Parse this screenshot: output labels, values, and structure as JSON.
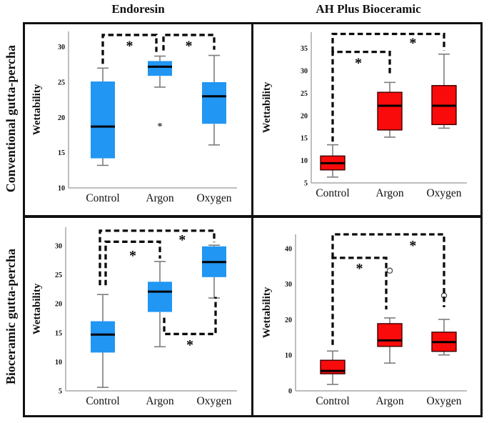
{
  "figure": {
    "col_headers": [
      "Endoresin",
      "AH Plus Bioceramic"
    ],
    "row_headers": [
      "Conventional gutta-percha",
      "Bioceramic gutta-percha"
    ]
  },
  "colors": {
    "blue_box": "#2196F3",
    "red_box": "#FA0B0B",
    "red_box_border": "#3d0000",
    "median": "#000000",
    "whisker": "#7d7d7d",
    "axis": "#a8a8a8",
    "bracket": "#0a0a0a",
    "text": "#111111"
  },
  "chart_data": [
    {
      "type": "box",
      "row": "Conventional gutta-percha",
      "col": "Endoresin",
      "ylabel": "Wettability",
      "categories": [
        "Control",
        "Argon",
        "Oxygen"
      ],
      "ymin": 10,
      "ymax": 32.2,
      "yticks": [
        10,
        15,
        20,
        25,
        30
      ],
      "box_color": "#2196F3",
      "box_stroke": "none",
      "boxes": [
        {
          "lo": 13.2,
          "q1": 14.2,
          "median": 18.7,
          "q3": 25.1,
          "hi": 27.0,
          "outliers": []
        },
        {
          "lo": 24.3,
          "q1": 25.9,
          "median": 27.2,
          "q3": 28.0,
          "hi": 28.7,
          "outliers": [
            {
              "v": 18.8,
              "symbol": "star"
            }
          ]
        },
        {
          "lo": 16.1,
          "q1": 19.1,
          "median": 23.0,
          "q3": 25.0,
          "hi": 28.8,
          "outliers": []
        }
      ],
      "brackets": [
        {
          "from": 0,
          "to": 1,
          "dx1": 0,
          "dx2": -5,
          "line": 31.7,
          "end1": 27.6,
          "end2": 29.3,
          "star_t": 0.5,
          "star_y": 30.2
        },
        {
          "from": 1,
          "to": 2,
          "dx1": 5,
          "dx2": 0,
          "line": 31.7,
          "end1": 29.5,
          "end2": 29.6,
          "star_t": 0.5,
          "star_y": 30.2
        }
      ]
    },
    {
      "type": "box",
      "row": "Conventional gutta-percha",
      "col": "AH Plus Bioceramic",
      "ylabel": "Wettability",
      "categories": [
        "Control",
        "Argon",
        "Oxygen"
      ],
      "ymin": 5,
      "ymax": 38.6,
      "yticks": [
        5,
        10,
        15,
        20,
        25,
        30,
        35
      ],
      "box_color": "#FA0B0B",
      "box_stroke": "#3d0000",
      "boxes": [
        {
          "lo": 6.3,
          "q1": 7.9,
          "median": 9.4,
          "q3": 11.0,
          "hi": 13.5,
          "outliers": []
        },
        {
          "lo": 15.2,
          "q1": 16.8,
          "median": 22.2,
          "q3": 25.2,
          "hi": 27.4,
          "outliers": []
        },
        {
          "lo": 17.2,
          "q1": 18.0,
          "median": 22.2,
          "q3": 26.7,
          "hi": 33.7,
          "outliers": []
        }
      ],
      "brackets": [
        {
          "from": 0,
          "to": 1,
          "dx1": 0,
          "dx2": 0,
          "line": 34.2,
          "end1": 14.2,
          "end2": 29.2,
          "star_t": 0.45,
          "star_y": 31.8
        },
        {
          "from": 0,
          "to": 2,
          "dx1": 0,
          "dx2": 0,
          "line": 38.2,
          "end1": 34.2,
          "end2": 34.5,
          "star_t": 0.72,
          "star_y": 36.3
        }
      ]
    },
    {
      "type": "box",
      "row": "Bioceramic gutta-percha",
      "col": "Endoresin",
      "ylabel": "Wettability",
      "categories": [
        "Control",
        "Argon",
        "Oxygen"
      ],
      "ymin": 5,
      "ymax": 33.2,
      "yticks": [
        5,
        10,
        15,
        20,
        25,
        30
      ],
      "box_color": "#2196F3",
      "box_stroke": "none",
      "boxes": [
        {
          "lo": 5.6,
          "q1": 11.6,
          "median": 14.7,
          "q3": 17.0,
          "hi": 21.6,
          "outliers": []
        },
        {
          "lo": 12.6,
          "q1": 18.6,
          "median": 22.1,
          "q3": 23.8,
          "hi": 27.3,
          "outliers": []
        },
        {
          "lo": 21.0,
          "q1": 24.6,
          "median": 27.2,
          "q3": 29.9,
          "hi": 30.1,
          "outliers": []
        }
      ],
      "brackets": [
        {
          "from": 0,
          "to": 1,
          "dx1": 4,
          "dx2": 0,
          "line": 30.7,
          "end1": 23.2,
          "end2": 27.8,
          "star_t": 0.5,
          "star_y": 28.4
        },
        {
          "from": 0,
          "to": 2,
          "dx1": -4,
          "dx2": 0,
          "line": 32.6,
          "end1": 23.2,
          "end2": 30.6,
          "star_t": 0.72,
          "star_y": 31.1
        },
        {
          "from": 1,
          "to": 2,
          "dx1": 6,
          "dx2": 2,
          "line": 14.8,
          "end1": 17.6,
          "end2": 21.2,
          "star_t": 0.5,
          "star_y": 13.0
        }
      ]
    },
    {
      "type": "box",
      "row": "Bioceramic gutta-percha",
      "col": "AH Plus Bioceramic",
      "ylabel": "Wettability",
      "categories": [
        "Control",
        "Argon",
        "Oxygen"
      ],
      "ymin": 0,
      "ymax": 44,
      "yticks": [
        0,
        10,
        20,
        30,
        40
      ],
      "box_color": "#FA0B0B",
      "box_stroke": "#3d0000",
      "boxes": [
        {
          "lo": 1.8,
          "q1": 4.8,
          "median": 5.6,
          "q3": 8.6,
          "hi": 11.2,
          "outliers": []
        },
        {
          "lo": 7.8,
          "q1": 12.5,
          "median": 14.2,
          "q3": 18.9,
          "hi": 20.5,
          "outliers": [
            {
              "v": 33.8,
              "symbol": "circle"
            }
          ]
        },
        {
          "lo": 10.1,
          "q1": 11.1,
          "median": 13.7,
          "q3": 16.5,
          "hi": 20.1,
          "outliers": [
            {
              "v": 26.8,
              "symbol": "circle"
            }
          ]
        }
      ],
      "brackets": [
        {
          "from": 0,
          "to": 1,
          "dx1": 0,
          "dx2": -5,
          "line": 37.4,
          "end1": 12.9,
          "end2": 22.9,
          "star_t": 0.5,
          "star_y": 34.6
        },
        {
          "from": 0,
          "to": 2,
          "dx1": 0,
          "dx2": 0,
          "line": 44.0,
          "end1": 37.4,
          "end2": 23.5,
          "star_t": 0.72,
          "star_y": 41.0
        }
      ]
    }
  ]
}
